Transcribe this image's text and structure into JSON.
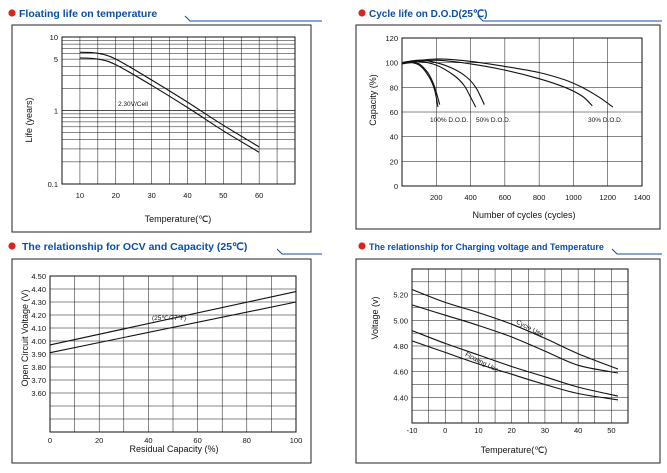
{
  "colors": {
    "accent": "#0b4fa3",
    "bullet": "#d7261e",
    "frame": "#222222",
    "grid": "#111111"
  },
  "chart_data": [
    {
      "type": "line",
      "title": "Floating life on temperature",
      "xlabel": "Temperature(℃)",
      "ylabel": "Life (years)",
      "yscale": "log",
      "xlim": [
        5,
        70
      ],
      "ylim": [
        0.1,
        10
      ],
      "xticks": [
        "10",
        "20",
        "30",
        "40",
        "50",
        "60"
      ],
      "yticks": [
        "10",
        "5",
        "1",
        "0.1"
      ],
      "annotation": "2.30V/Cell",
      "series": [
        {
          "name": "upper",
          "x": [
            10,
            15,
            20,
            30,
            40,
            50,
            60
          ],
          "y": [
            6.2,
            6.0,
            5.0,
            2.6,
            1.3,
            0.63,
            0.32
          ]
        },
        {
          "name": "lower",
          "x": [
            10,
            15,
            20,
            30,
            40,
            50,
            60
          ],
          "y": [
            5.2,
            5.0,
            4.2,
            2.2,
            1.1,
            0.53,
            0.27
          ]
        }
      ]
    },
    {
      "type": "line",
      "title": "Cycle life on D.O.D(25℃)",
      "xlabel": "Number of cycles (cycles)",
      "ylabel": "Capacity (%)",
      "xlim": [
        0,
        1400
      ],
      "ylim": [
        0,
        120
      ],
      "xticks": [
        "200",
        "400",
        "600",
        "800",
        "1000",
        "1200",
        "1400"
      ],
      "yticks": [
        "120",
        "100",
        "80",
        "60",
        "40",
        "20",
        "0"
      ],
      "labels": [
        "100% D.O.D.",
        "50% D.O.D.",
        "30% D.O.D."
      ],
      "series": [
        {
          "name": "100% D.O.D.",
          "x": [
            0,
            50,
            100,
            150,
            180,
            200,
            220
          ],
          "y": [
            100,
            101,
            99,
            92,
            84,
            76,
            66
          ]
        },
        {
          "name": "100% D.O.D. (b)",
          "x": [
            0,
            60,
            110,
            160,
            190,
            210
          ],
          "y": [
            99,
            100,
            97,
            88,
            78,
            64
          ]
        },
        {
          "name": "50% D.O.D.",
          "x": [
            0,
            100,
            200,
            300,
            380,
            430,
            460,
            480
          ],
          "y": [
            100,
            102,
            100,
            95,
            88,
            80,
            72,
            66
          ]
        },
        {
          "name": "50% D.O.D. (b)",
          "x": [
            0,
            100,
            200,
            300,
            360,
            400,
            430
          ],
          "y": [
            100,
            101,
            98,
            90,
            82,
            72,
            64
          ]
        },
        {
          "name": "30% D.O.D.",
          "x": [
            0,
            200,
            400,
            600,
            800,
            950,
            1050,
            1150,
            1230
          ],
          "y": [
            100,
            103,
            101,
            97,
            92,
            86,
            80,
            72,
            64
          ]
        },
        {
          "name": "30% D.O.D. (b)",
          "x": [
            0,
            200,
            400,
            600,
            800,
            950,
            1050,
            1110
          ],
          "y": [
            100,
            102,
            99,
            94,
            87,
            80,
            73,
            65
          ]
        }
      ]
    },
    {
      "type": "line",
      "title": "The relationship  for OCV and Capacity (25℃)",
      "xlabel": "Residual Capacity (%)",
      "ylabel": "Open Circuit Voltage (V)",
      "xlim": [
        0,
        100
      ],
      "ylim": [
        3.3,
        4.5
      ],
      "xticks": [
        "0",
        "20",
        "40",
        "60",
        "80",
        "100"
      ],
      "yticks": [
        "4.50",
        "4.40",
        "4.30",
        "4.20",
        "4.10",
        "4.00",
        "3.90",
        "3.80",
        "3.70",
        "3.60"
      ],
      "annotation": "(25℃/77℉)",
      "series": [
        {
          "name": "upper",
          "x": [
            0,
            100
          ],
          "y": [
            3.97,
            4.38
          ]
        },
        {
          "name": "lower",
          "x": [
            0,
            100
          ],
          "y": [
            3.91,
            4.3
          ]
        }
      ]
    },
    {
      "type": "line",
      "title": "The relationship for Charging voltage and Temperature",
      "xlabel": "Temperature(℃)",
      "ylabel": "Voltage (v)",
      "xlim": [
        -10,
        55
      ],
      "ylim": [
        4.2,
        5.4
      ],
      "xticks": [
        "-10",
        "0",
        "10",
        "20",
        "30",
        "40",
        "50"
      ],
      "yticks": [
        "5.20",
        "5.00",
        "4.80",
        "4.60",
        "4.40"
      ],
      "labels": [
        "Cycle Use",
        "Floating Use"
      ],
      "series": [
        {
          "name": "Cycle Use upper",
          "x": [
            -10,
            0,
            10,
            20,
            30,
            40,
            52
          ],
          "y": [
            5.24,
            5.14,
            5.06,
            4.97,
            4.86,
            4.74,
            4.62
          ]
        },
        {
          "name": "Cycle Use lower",
          "x": [
            -10,
            0,
            10,
            20,
            30,
            40,
            52
          ],
          "y": [
            5.12,
            5.04,
            4.96,
            4.87,
            4.76,
            4.65,
            4.59
          ]
        },
        {
          "name": "Floating Use upper",
          "x": [
            -10,
            0,
            10,
            20,
            30,
            40,
            52
          ],
          "y": [
            4.92,
            4.82,
            4.73,
            4.64,
            4.56,
            4.48,
            4.41
          ]
        },
        {
          "name": "Floating Use lower",
          "x": [
            -10,
            0,
            10,
            20,
            30,
            40,
            52
          ],
          "y": [
            4.84,
            4.75,
            4.66,
            4.58,
            4.5,
            4.43,
            4.38
          ]
        }
      ]
    }
  ]
}
